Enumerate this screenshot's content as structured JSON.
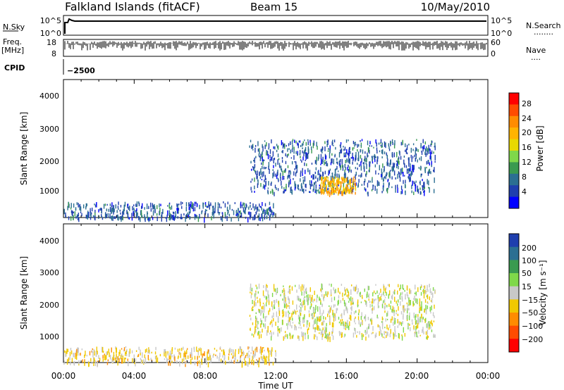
{
  "header": {
    "station": "Falkland Islands (fitACF)",
    "beam": "Beam 15",
    "date": "10/May/2010"
  },
  "top_panels": {
    "nsky_label": "N.Sky",
    "nsearch_label": "N.Search",
    "nsearch_dots": "........",
    "freq_label_1": "Freq.",
    "freq_label_2": "[MHz]",
    "nave_label": "Nave",
    "nave_dots": "....",
    "cpid_label": "CPID",
    "cpid_value": "−2500",
    "nsky_ticks": [
      "10^5",
      "10^0"
    ],
    "nsearch_ticks": [
      "10^5",
      "10^0"
    ],
    "freq_ticks": [
      "18",
      "8"
    ],
    "nave_ticks": [
      "60",
      "0"
    ]
  },
  "power_panel": {
    "ylabel": "Slant Range [km]",
    "yticks": [
      "4000",
      "3000",
      "2000",
      "1000"
    ],
    "colorbar_label": "Power [dB]",
    "colorbar_ticks": [
      "28",
      "24",
      "20",
      "16",
      "12",
      "8",
      "4"
    ],
    "colorbar_colors": [
      "#ff0000",
      "#ff4c00",
      "#ff8c00",
      "#ffb400",
      "#e8d800",
      "#7fd84a",
      "#3a9a50",
      "#2b6f92",
      "#1f3fae",
      "#0000ff"
    ]
  },
  "velocity_panel": {
    "ylabel": "Slant Range [km]",
    "yticks": [
      "4000",
      "3000",
      "2000",
      "1000"
    ],
    "colorbar_label": "Velocity [m s⁻¹]",
    "colorbar_ticks": [
      "200",
      "100",
      "50",
      "15",
      "−15",
      "−50",
      "−100",
      "−200"
    ],
    "colorbar_colors": [
      "#1f3fae",
      "#2b6f92",
      "#3a9a50",
      "#7fd84a",
      "#c8c8c8",
      "#f0c800",
      "#ff8c00",
      "#ff4c00",
      "#ff0000"
    ]
  },
  "xaxis": {
    "label": "Time UT",
    "ticks": [
      "00:00",
      "04:00",
      "08:00",
      "12:00",
      "16:00",
      "20:00",
      "00:00"
    ]
  },
  "chart_data": [
    {
      "type": "heatmap",
      "name": "Power",
      "x_range_hours": [
        0,
        24
      ],
      "y_range_km": [
        180,
        4600
      ],
      "value_range_db": [
        0,
        30
      ],
      "regions": [
        {
          "x_hours": [
            0,
            12
          ],
          "y_km": [
            180,
            700
          ],
          "typical_value_db": 6
        },
        {
          "x_hours": [
            10.5,
            21
          ],
          "y_km": [
            1000,
            2700
          ],
          "typical_value_db": 6
        },
        {
          "x_hours": [
            14.5,
            16.5
          ],
          "y_km": [
            1000,
            1500
          ],
          "typical_value_db": 20
        }
      ]
    },
    {
      "type": "heatmap",
      "name": "Velocity",
      "x_range_hours": [
        0,
        24
      ],
      "y_range_km": [
        180,
        4600
      ],
      "value_range_ms": [
        -200,
        200
      ],
      "regions": [
        {
          "x_hours": [
            0,
            12
          ],
          "y_km": [
            180,
            700
          ],
          "typical_value_ms": -30
        },
        {
          "x_hours": [
            10.5,
            21
          ],
          "y_km": [
            1000,
            2700
          ],
          "typical_value_ms": 0
        }
      ]
    }
  ]
}
